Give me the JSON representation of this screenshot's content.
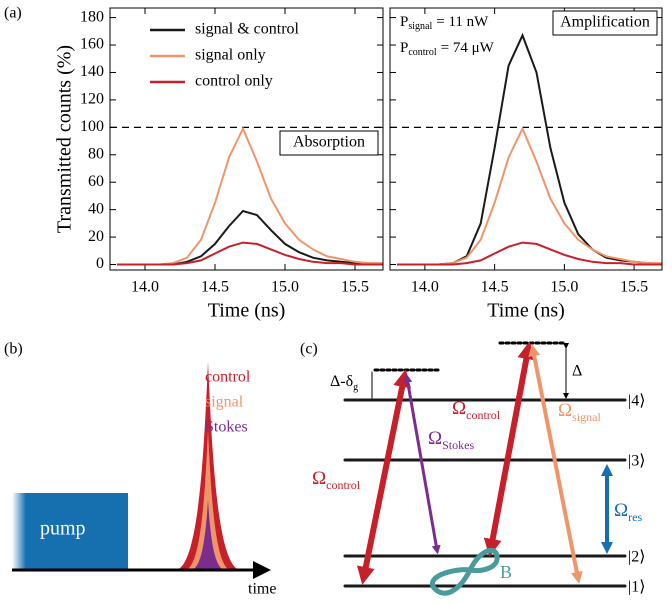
{
  "chart_data": [
    {
      "type": "line",
      "ylabel": "Transmitted counts (%)",
      "xlabel": "Time (ns)",
      "annotation": "Absorption",
      "reference_line": 100,
      "x": [
        13.8,
        13.9,
        14.0,
        14.1,
        14.2,
        14.3,
        14.4,
        14.5,
        14.6,
        14.7,
        14.8,
        14.9,
        15.0,
        15.1,
        15.2,
        15.3,
        15.4,
        15.5,
        15.6,
        15.7
      ],
      "xlim": [
        13.75,
        15.7
      ],
      "xticks": [
        {
          "value": 14,
          "label": "14.0"
        },
        14.5,
        {
          "value": 15,
          "label": "15.0"
        },
        15.5
      ],
      "ylim": [
        -4,
        187
      ],
      "yticks": [
        0,
        20,
        40,
        60,
        80,
        100,
        120,
        140,
        160,
        180
      ],
      "legend": "upper left",
      "series": [
        {
          "name": "signal & control",
          "color": "#1a1a1a",
          "values": [
            0,
            0,
            0,
            0,
            0,
            2,
            6,
            15,
            28,
            39,
            36,
            25,
            15,
            9,
            5,
            3,
            2,
            1,
            0,
            0
          ]
        },
        {
          "name": "signal only",
          "color": "#f0956a",
          "values": [
            0,
            0,
            0,
            0,
            1,
            5,
            18,
            45,
            78,
            99,
            75,
            48,
            30,
            18,
            11,
            6,
            4,
            2,
            1,
            1
          ]
        },
        {
          "name": "control only",
          "color": "#c8202a",
          "values": [
            0,
            0,
            0,
            0,
            0,
            1,
            3,
            8,
            13,
            16,
            15,
            11,
            7,
            4,
            2,
            1,
            1,
            0,
            0,
            0
          ]
        }
      ]
    },
    {
      "type": "line",
      "xlabel": "Time (ns)",
      "annotation": "Amplification",
      "reference_line": 100,
      "show_ytick_labels": false,
      "power_labels": [
        {
          "symbol": "P",
          "subscript": "signal",
          "text": "= 11 nW"
        },
        {
          "symbol": "P",
          "subscript": "control",
          "text": "= 74 μW"
        }
      ],
      "x": [
        13.8,
        13.9,
        14.0,
        14.1,
        14.2,
        14.3,
        14.4,
        14.5,
        14.6,
        14.7,
        14.8,
        14.9,
        15.0,
        15.1,
        15.2,
        15.3,
        15.4,
        15.5,
        15.6,
        15.7
      ],
      "xlim": [
        13.75,
        15.7
      ],
      "xticks": [
        {
          "value": 14,
          "label": "14.0"
        },
        14.5,
        {
          "value": 15,
          "label": "15.0"
        },
        15.5
      ],
      "ylim": [
        -4,
        187
      ],
      "yticks": [
        0,
        20,
        40,
        60,
        80,
        100,
        120,
        140,
        160,
        180
      ],
      "series": [
        {
          "color": "#1a1a1a",
          "values": [
            0,
            0,
            0,
            0,
            1,
            6,
            30,
            85,
            145,
            167,
            140,
            85,
            45,
            22,
            11,
            5,
            3,
            2,
            1,
            0
          ]
        },
        {
          "color": "#f0956a",
          "values": [
            0,
            0,
            0,
            0,
            1,
            5,
            18,
            45,
            78,
            99,
            75,
            48,
            30,
            18,
            11,
            6,
            4,
            2,
            1,
            1
          ]
        },
        {
          "color": "#c8202a",
          "values": [
            0,
            0,
            0,
            0,
            0,
            1,
            3,
            8,
            13,
            16,
            15,
            11,
            7,
            4,
            2,
            1,
            1,
            0,
            0,
            0
          ]
        }
      ]
    }
  ],
  "panel_labels": [
    "(a)",
    "(b)",
    "(c)"
  ],
  "panel_b": {
    "pulses": [
      "control",
      "signal",
      "Stokes"
    ],
    "pump": "pump",
    "axis": "time"
  },
  "panel_c": {
    "levels": [
      "|4⟩",
      "|3⟩",
      "|2⟩",
      "|1⟩"
    ],
    "rabi": [
      {
        "symbol": "Ω",
        "subscript": "control"
      },
      {
        "symbol": "Ω",
        "subscript": "Stokes"
      },
      {
        "symbol": "Ω",
        "subscript": "control"
      },
      {
        "symbol": "Ω",
        "subscript": "signal"
      },
      {
        "symbol": "Ω",
        "subscript": "res"
      }
    ],
    "detuning_left": {
      "text": "Δ-δ",
      "subscript": "g"
    },
    "detuning_right": "Δ",
    "field": "B"
  }
}
